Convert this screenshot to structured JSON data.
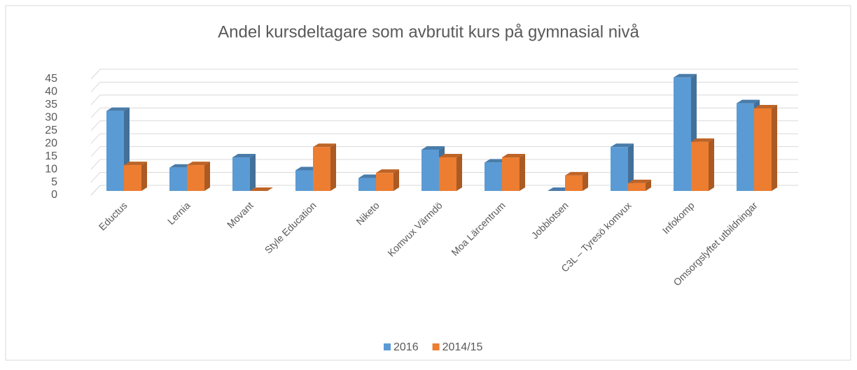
{
  "chart_data": {
    "type": "bar3d",
    "title": "Andel kursdeltagare som avbrutit kurs på gymnasial nivå",
    "categories": [
      "Eductus",
      "Lernia",
      "Movant",
      "Style Education",
      "Niketo",
      "Komvux Värmdö",
      "Moa Lärcentrum",
      "Jobblotsen",
      "C3L – Tyresö komvux",
      "Infokomp",
      "Omsorgslyftet utbildningar"
    ],
    "series": [
      {
        "name": "2016",
        "color": "#5b9bd5",
        "values": [
          31,
          9,
          13,
          8,
          5,
          16,
          11,
          0,
          17,
          44,
          34
        ]
      },
      {
        "name": "2014/15",
        "color": "#ed7d31",
        "values": [
          10,
          10,
          0,
          17,
          7,
          13,
          13,
          6,
          3,
          19,
          32
        ]
      }
    ],
    "ylim": [
      0,
      45
    ],
    "yticks": [
      0,
      5,
      10,
      15,
      20,
      25,
      30,
      35,
      40,
      45
    ],
    "grid": true,
    "legend": "bottom"
  }
}
